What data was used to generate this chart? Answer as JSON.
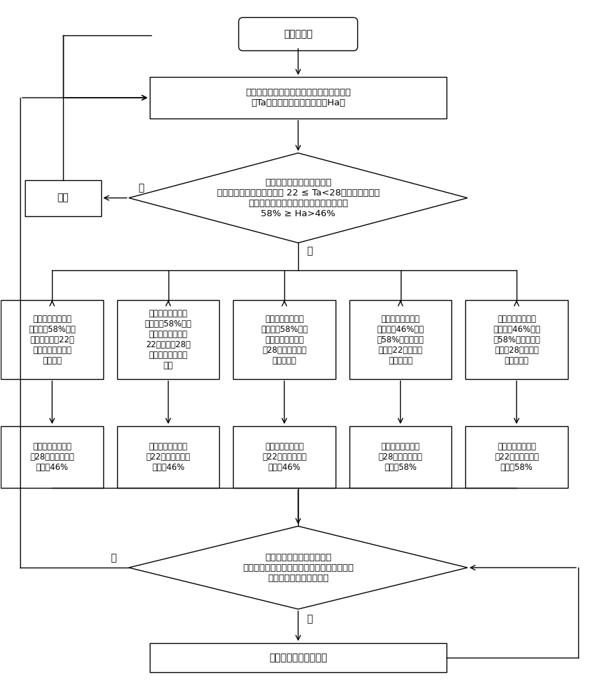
{
  "bg_color": "#ffffff",
  "text_color": "#000000",
  "box_edge_color": "#000000",
  "lw": 1.0,
  "start_text": "初始化参数",
  "receive_text": "接收到除湿指令时，获取当前室内环境温度\n（Ta）和当前室内环境湿度（Ha）",
  "diamond1_text": "判断所述当前室内环境温度\n是否达到预设目标温度参数 22 ≤ Ta<28，度，以及当前\n室内环境湿度是否达到预设目标湿度参数\n58% ≥ Ha>46%",
  "standby_text": "待机",
  "box_texts": [
    "当室内相对湿度大\n于或等于58%，且\n室内温度低于22度\n时，开启升温除湿\n运行模式",
    "当室内相对湿度大\n于或等于58%，且\n室内温度大于等于\n22度且小于28度\n时，开启恒温除湿\n模式",
    "当室内相对湿度大\n于或等于58%，且\n室内温度大于或等\n于28度时，开启降\n温除湿模式",
    "当室内相对湿度大\n于或等于46%且小\n于58%，且室内温\n度小于22度时，开\n启升温模式",
    "当室内相对湿度大\n于或等于46%且小\n于58%，且室内温\n度大于28度时，开\n启降温模式"
  ],
  "result_texts": [
    "目标室内温度不高\n于28度，相对湿度\n不低于46%",
    "目标室内温度不低\n于22度，相对湿度\n不低于46%",
    "目标室内温度不低\n于22度，相对湿度\n不低于46%",
    "目标室内温度不高\n于28度，相对湿度\n不高于58%",
    "目标室内温度不低\n于22度，相对湿度\n不高于58%"
  ],
  "diamond2_text": "判断调整所述空调器的运行\n参数的时间点至当前时间点之间的工作时间长\n度是否达到预设时间长度",
  "continue_text": "继续运行当前除湿模式",
  "yes_label": "是",
  "no_label": "否"
}
